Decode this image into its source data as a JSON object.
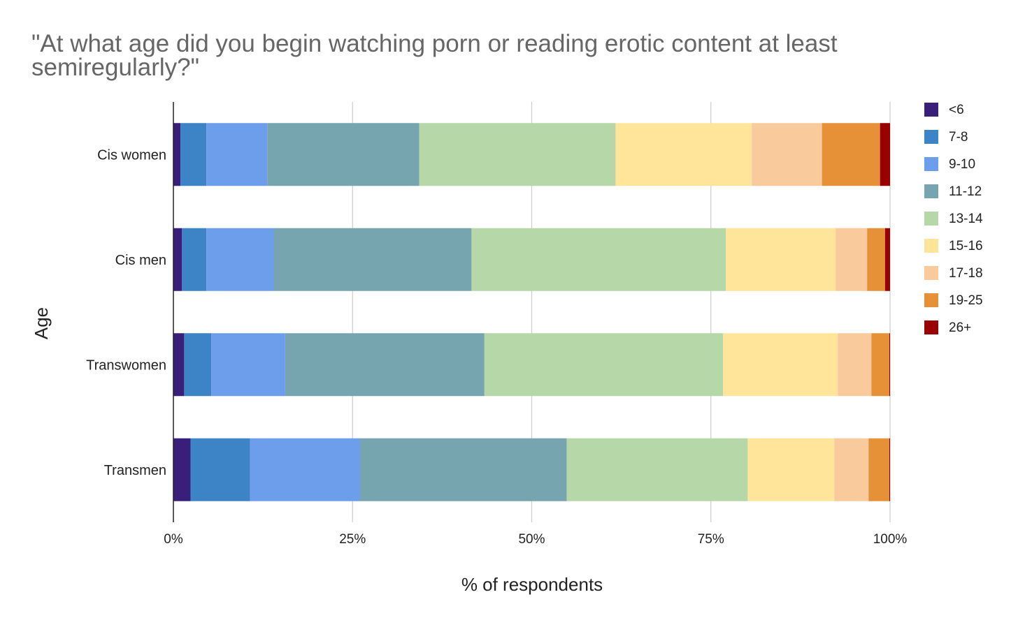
{
  "chart_data": {
    "type": "bar",
    "orientation": "horizontal",
    "stacked": "percent",
    "title_lines": [
      "\"At what age did you begin watching porn or reading erotic content at least",
      "semiregularly?\""
    ],
    "xlabel": "% of respondents",
    "ylabel": "Age",
    "xlim": [
      0,
      100
    ],
    "x_ticks": [
      "0%",
      "25%",
      "50%",
      "75%",
      "100%"
    ],
    "x_tick_values": [
      0,
      25,
      50,
      75,
      100
    ],
    "grid": true,
    "legend_position": "right",
    "categories": [
      "Cis women",
      "Cis men",
      "Transwomen",
      "Transmen"
    ],
    "series": [
      {
        "name": "<6",
        "color": "#3a1f7a",
        "values": [
          1.0,
          1.2,
          1.5,
          2.4
        ]
      },
      {
        "name": "7-8",
        "color": "#3d84c6",
        "values": [
          3.6,
          3.4,
          3.8,
          8.3
        ]
      },
      {
        "name": "9-10",
        "color": "#6d9eeb",
        "values": [
          8.5,
          9.4,
          10.3,
          15.4
        ]
      },
      {
        "name": "11-12",
        "color": "#76a5af",
        "values": [
          21.2,
          27.6,
          27.8,
          28.9
        ]
      },
      {
        "name": "13-14",
        "color": "#b6d7a8",
        "values": [
          27.4,
          35.5,
          33.3,
          25.3
        ]
      },
      {
        "name": "15-16",
        "color": "#ffe599",
        "values": [
          19.0,
          15.3,
          16.0,
          12.1
        ]
      },
      {
        "name": "17-18",
        "color": "#f9cb9c",
        "values": [
          9.8,
          4.4,
          4.7,
          4.8
        ]
      },
      {
        "name": "19-25",
        "color": "#e69138",
        "values": [
          8.1,
          2.5,
          2.5,
          2.9
        ]
      },
      {
        "name": "26+",
        "color": "#990000",
        "values": [
          1.4,
          0.7,
          0.1,
          0.1
        ]
      }
    ]
  }
}
